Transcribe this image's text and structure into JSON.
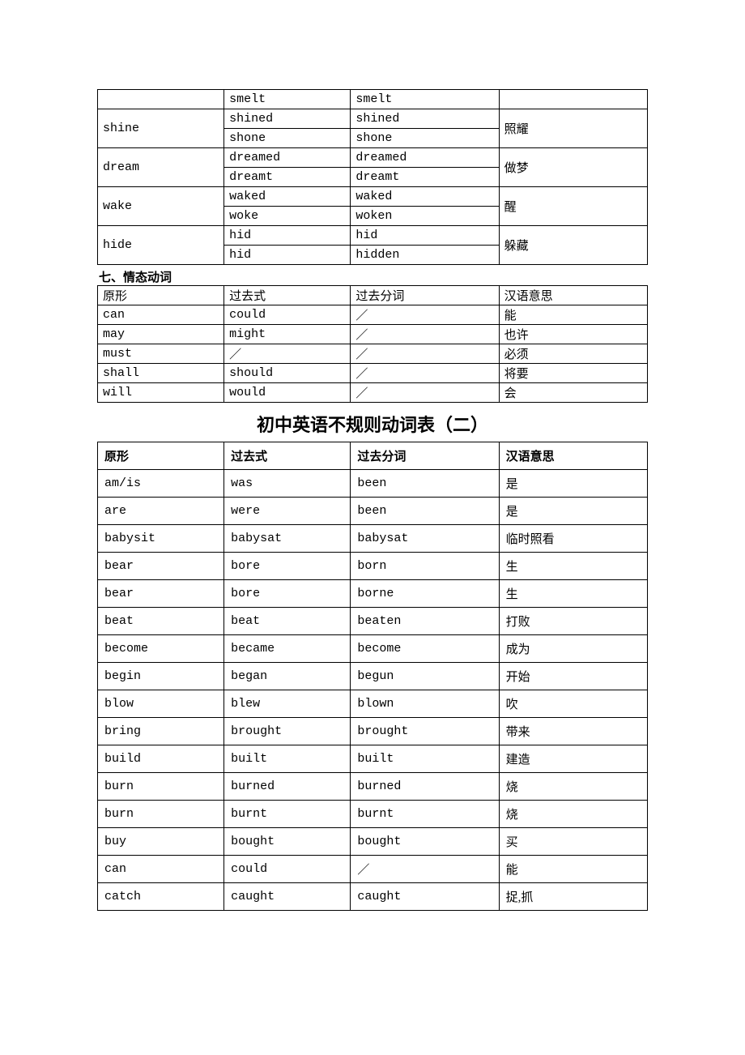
{
  "table1": {
    "rows": [
      {
        "base": "",
        "past": "smelt",
        "pp": "smelt",
        "cn": ""
      },
      {
        "base": "shine",
        "rowspan": 2,
        "past": "shined",
        "pp": "shined",
        "cn": "照耀",
        "cnrowspan": 2
      },
      {
        "past": "shone",
        "pp": "shone"
      },
      {
        "base": "dream",
        "rowspan": 2,
        "past": "dreamed",
        "pp": "dreamed",
        "cn": "做梦",
        "cnrowspan": 2
      },
      {
        "past": "dreamt",
        "pp": "dreamt"
      },
      {
        "base": "wake",
        "rowspan": 2,
        "past": "waked",
        "pp": "waked",
        "cn": "醒",
        "cnrowspan": 2
      },
      {
        "past": "woke",
        "pp": "woken"
      },
      {
        "base": "hide",
        "rowspan": 2,
        "past": "hid",
        "pp": "hid",
        "cn": "躲藏",
        "cnrowspan": 2
      },
      {
        "past": "hid",
        "pp": "hidden"
      }
    ]
  },
  "section2_label": "七、情态动词",
  "table2": {
    "header": [
      "原形",
      "过去式",
      "过去分词",
      "汉语意思"
    ],
    "rows": [
      [
        "can",
        "could",
        "／",
        "能"
      ],
      [
        "may",
        "might",
        "／",
        "也许"
      ],
      [
        "must",
        "／",
        "／",
        "必须"
      ],
      [
        "shall",
        "should",
        "／",
        "将要"
      ],
      [
        "will",
        "would",
        "／",
        "会"
      ]
    ]
  },
  "big_title": "初中英语不规则动词表（二）",
  "table3": {
    "header": [
      "原形",
      "过去式",
      "过去分词",
      "汉语意思"
    ],
    "rows": [
      [
        "am/is",
        "was",
        "been",
        "是"
      ],
      [
        "are",
        "were",
        "been",
        "是"
      ],
      [
        "babysit",
        "babysat",
        "babysat",
        "临时照看"
      ],
      [
        "bear",
        "bore",
        "born",
        "生"
      ],
      [
        "bear",
        "bore",
        "borne",
        "生"
      ],
      [
        "beat",
        "beat",
        "beaten",
        "打败"
      ],
      [
        "become",
        "became",
        "become",
        "成为"
      ],
      [
        "begin",
        "began",
        "begun",
        "开始"
      ],
      [
        "blow",
        "blew",
        "blown",
        "吹"
      ],
      [
        "bring",
        "brought",
        "brought",
        "带来"
      ],
      [
        "build",
        "built",
        "built",
        "建造"
      ],
      [
        "burn",
        "burned",
        "burned",
        "烧"
      ],
      [
        "burn",
        "burnt",
        "burnt",
        "烧"
      ],
      [
        "buy",
        "bought",
        "bought",
        "买"
      ],
      [
        "can",
        "could",
        "／",
        "能"
      ],
      [
        "catch",
        "caught",
        "caught",
        "捉,抓"
      ]
    ]
  },
  "col_widths": [
    "23%",
    "23%",
    "27%",
    "27%"
  ]
}
